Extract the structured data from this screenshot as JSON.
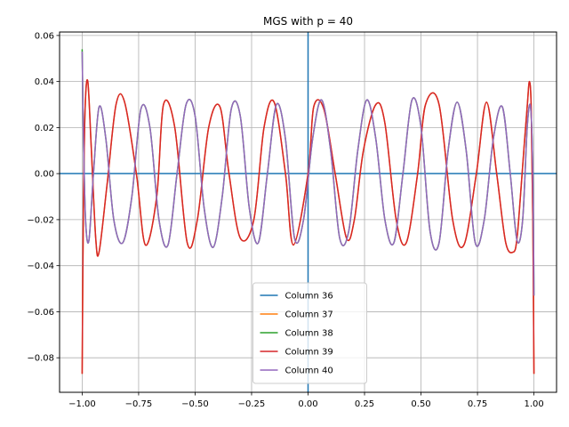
{
  "chart_data": {
    "type": "line",
    "title": "MGS with p = 40",
    "xlabel": "",
    "ylabel": "",
    "xlim": [
      -1.1,
      1.1
    ],
    "ylim": [
      -0.095,
      0.0615
    ],
    "xticks": [
      -1.0,
      -0.75,
      -0.5,
      -0.25,
      0.0,
      0.25,
      0.5,
      0.75,
      1.0
    ],
    "xtick_labels": [
      "−1.00",
      "−0.75",
      "−0.50",
      "−0.25",
      "0.00",
      "0.25",
      "0.50",
      "0.75",
      "1.00"
    ],
    "yticks": [
      -0.08,
      -0.06,
      -0.04,
      -0.02,
      0.0,
      0.02,
      0.04,
      0.06
    ],
    "ytick_labels": [
      "−0.08",
      "−0.06",
      "−0.04",
      "−0.02",
      "0.00",
      "0.02",
      "0.04",
      "0.06"
    ],
    "grid": true,
    "axes_lines": {
      "horizontal_at_y": 0,
      "vertical_at_x": 0,
      "color": "#1f77b4"
    },
    "legend_position": "lower-center",
    "series": [
      {
        "name": "Column 36",
        "color": "#1f77b4",
        "visible_curve": false,
        "x": [],
        "y": []
      },
      {
        "name": "Column 37",
        "color": "#ff7f0e",
        "visible_curve": true,
        "x": [
          -1.0,
          -0.995,
          -0.987,
          -0.975,
          -0.96,
          -0.94,
          -0.925,
          -0.89,
          -0.85,
          -0.812,
          -0.76,
          -0.72,
          -0.67,
          -0.64,
          -0.59,
          -0.535,
          -0.49,
          -0.44,
          -0.39,
          -0.35,
          -0.3,
          -0.24,
          -0.195,
          -0.15,
          -0.1,
          -0.065,
          0.0,
          0.025,
          0.07,
          0.12,
          0.17,
          0.205,
          0.245,
          0.3,
          0.34,
          0.39,
          0.435,
          0.485,
          0.52,
          0.58,
          0.64,
          0.69,
          0.745,
          0.79,
          0.835,
          0.875,
          0.91,
          0.925,
          0.94,
          0.955,
          0.97,
          0.98,
          0.988,
          0.995,
          1.0
        ],
        "y": [
          -0.087,
          -0.02,
          0.028,
          0.04,
          0.012,
          -0.028,
          -0.034,
          -0.005,
          0.03,
          0.031,
          0.0,
          -0.031,
          -0.01,
          0.03,
          0.02,
          -0.03,
          -0.02,
          0.02,
          0.029,
          0.0,
          -0.028,
          -0.02,
          0.02,
          0.031,
          0.0,
          -0.031,
          0.0,
          0.029,
          0.028,
          0.0,
          -0.028,
          -0.02,
          0.01,
          0.03,
          0.022,
          -0.02,
          -0.03,
          0.0,
          0.03,
          0.03,
          -0.02,
          -0.031,
          0.0,
          0.031,
          0.0,
          -0.03,
          -0.034,
          -0.028,
          -0.01,
          0.01,
          0.029,
          0.04,
          0.028,
          -0.02,
          -0.087
        ]
      },
      {
        "name": "Column 38",
        "color": "#2ca02c",
        "visible_curve": true,
        "x": [
          -1.0,
          -0.995,
          -0.985,
          -0.97,
          -0.95,
          -0.925,
          -0.895,
          -0.86,
          -0.82,
          -0.78,
          -0.74,
          -0.7,
          -0.66,
          -0.62,
          -0.58,
          -0.54,
          -0.5,
          -0.46,
          -0.42,
          -0.38,
          -0.34,
          -0.3,
          -0.26,
          -0.22,
          -0.18,
          -0.14,
          -0.1,
          -0.06,
          -0.02,
          0.02,
          0.06,
          0.1,
          0.14,
          0.18,
          0.22,
          0.26,
          0.3,
          0.34,
          0.38,
          0.42,
          0.46,
          0.5,
          0.54,
          0.58,
          0.62,
          0.66,
          0.7,
          0.74,
          0.78,
          0.82,
          0.86,
          0.895,
          0.925,
          0.95,
          0.97,
          0.985,
          0.995,
          1.0
        ],
        "y": [
          0.054,
          0.02,
          -0.02,
          -0.029,
          0.0,
          0.029,
          0.015,
          -0.02,
          -0.03,
          -0.01,
          0.028,
          0.02,
          -0.02,
          -0.031,
          0.0,
          0.03,
          0.025,
          -0.015,
          -0.032,
          -0.01,
          0.028,
          0.025,
          -0.015,
          -0.03,
          0.0,
          0.03,
          0.015,
          -0.028,
          -0.02,
          0.015,
          0.032,
          0.01,
          -0.028,
          -0.025,
          0.01,
          0.032,
          0.015,
          -0.02,
          -0.03,
          0.0,
          0.032,
          0.02,
          -0.025,
          -0.03,
          0.01,
          0.031,
          0.01,
          -0.03,
          -0.02,
          0.015,
          0.029,
          0.0,
          -0.029,
          -0.02,
          0.02,
          0.029,
          0.0,
          -0.053
        ]
      },
      {
        "name": "Column 39",
        "color": "#d62728",
        "visible_curve": true,
        "x": [
          -1.0,
          -0.995,
          -0.987,
          -0.975,
          -0.96,
          -0.94,
          -0.925,
          -0.89,
          -0.85,
          -0.812,
          -0.76,
          -0.72,
          -0.67,
          -0.64,
          -0.59,
          -0.535,
          -0.49,
          -0.44,
          -0.39,
          -0.35,
          -0.3,
          -0.24,
          -0.195,
          -0.15,
          -0.1,
          -0.065,
          0.0,
          0.025,
          0.07,
          0.12,
          0.17,
          0.205,
          0.245,
          0.3,
          0.34,
          0.39,
          0.435,
          0.485,
          0.52,
          0.58,
          0.64,
          0.69,
          0.745,
          0.79,
          0.835,
          0.875,
          0.91,
          0.925,
          0.94,
          0.955,
          0.97,
          0.98,
          0.988,
          0.995,
          1.0
        ],
        "y": [
          -0.087,
          -0.02,
          0.028,
          0.04,
          0.012,
          -0.028,
          -0.034,
          -0.005,
          0.03,
          0.031,
          0.0,
          -0.031,
          -0.01,
          0.03,
          0.02,
          -0.03,
          -0.02,
          0.02,
          0.029,
          0.0,
          -0.028,
          -0.02,
          0.02,
          0.031,
          0.0,
          -0.031,
          0.0,
          0.029,
          0.028,
          0.0,
          -0.028,
          -0.02,
          0.01,
          0.03,
          0.022,
          -0.02,
          -0.03,
          0.0,
          0.03,
          0.03,
          -0.02,
          -0.031,
          0.0,
          0.031,
          0.0,
          -0.03,
          -0.034,
          -0.028,
          -0.01,
          0.01,
          0.029,
          0.04,
          0.028,
          -0.02,
          -0.087
        ]
      },
      {
        "name": "Column 40",
        "color": "#9467bd",
        "visible_curve": true,
        "x": [
          -1.0,
          -0.995,
          -0.985,
          -0.97,
          -0.95,
          -0.925,
          -0.895,
          -0.86,
          -0.82,
          -0.78,
          -0.74,
          -0.7,
          -0.66,
          -0.62,
          -0.58,
          -0.54,
          -0.5,
          -0.46,
          -0.42,
          -0.38,
          -0.34,
          -0.3,
          -0.26,
          -0.22,
          -0.18,
          -0.14,
          -0.1,
          -0.06,
          -0.02,
          0.02,
          0.06,
          0.1,
          0.14,
          0.18,
          0.22,
          0.26,
          0.3,
          0.34,
          0.38,
          0.42,
          0.46,
          0.5,
          0.54,
          0.58,
          0.62,
          0.66,
          0.7,
          0.74,
          0.78,
          0.82,
          0.86,
          0.895,
          0.925,
          0.95,
          0.97,
          0.985,
          0.995,
          1.0
        ],
        "y": [
          0.053,
          0.02,
          -0.02,
          -0.029,
          0.0,
          0.029,
          0.015,
          -0.02,
          -0.03,
          -0.01,
          0.028,
          0.02,
          -0.02,
          -0.031,
          0.0,
          0.03,
          0.025,
          -0.015,
          -0.032,
          -0.01,
          0.028,
          0.025,
          -0.015,
          -0.03,
          0.0,
          0.03,
          0.015,
          -0.028,
          -0.02,
          0.015,
          0.032,
          0.01,
          -0.028,
          -0.025,
          0.01,
          0.032,
          0.015,
          -0.02,
          -0.03,
          0.0,
          0.032,
          0.02,
          -0.025,
          -0.03,
          0.01,
          0.031,
          0.01,
          -0.03,
          -0.02,
          0.015,
          0.029,
          0.0,
          -0.029,
          -0.02,
          0.02,
          0.029,
          0.0,
          -0.053
        ]
      }
    ]
  }
}
